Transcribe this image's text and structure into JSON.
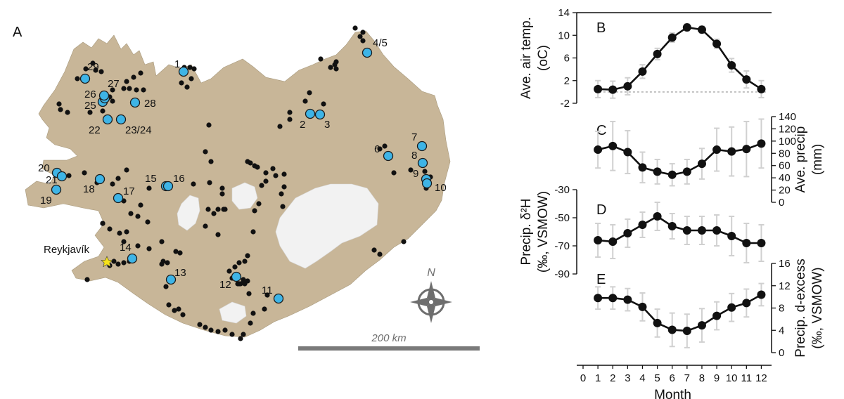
{
  "map": {
    "panel_label": "A",
    "city_label": "Reykjavík",
    "scale_label": "200 km",
    "compass_label": "N",
    "land_color": "#c8b698",
    "glacier_color": "#f2f2f2",
    "site_color": "#3eb4e6",
    "sample_color": "#111111",
    "site_labels": [
      "1",
      "2",
      "3",
      "4/5",
      "6",
      "7",
      "8",
      "9",
      "10",
      "11",
      "12",
      "13",
      "14",
      "15",
      "16",
      "17",
      "18",
      "19",
      "20",
      "21",
      "22",
      "23/24",
      "25",
      "26",
      "27",
      "28",
      "29"
    ]
  },
  "chart_data": [
    {
      "panel": "B",
      "type": "line",
      "ylabel_lines": [
        "Ave. air temp.",
        "(oC)"
      ],
      "yticks": [
        "14",
        "10",
        "6",
        "2",
        "-2"
      ],
      "ylim": [
        -2,
        14
      ],
      "x": [
        1,
        2,
        3,
        4,
        5,
        6,
        7,
        8,
        9,
        10,
        11,
        12
      ],
      "values": [
        0.5,
        0.4,
        1.0,
        3.6,
        6.7,
        9.6,
        11.4,
        11.0,
        8.5,
        4.7,
        2.2,
        0.5
      ],
      "error": [
        1.5,
        1.5,
        1.5,
        1.2,
        1.0,
        0.8,
        0.6,
        0.6,
        0.8,
        1.2,
        1.5,
        1.5
      ],
      "reference_line": 0
    },
    {
      "panel": "C",
      "type": "line",
      "ylabel_lines": [
        "Ave. precip",
        "(mm)"
      ],
      "yticks": [
        "140",
        "120",
        "100",
        "80",
        "60",
        "40",
        "20",
        "0"
      ],
      "ylim": [
        0,
        140
      ],
      "x": [
        1,
        2,
        3,
        4,
        5,
        6,
        7,
        8,
        9,
        10,
        11,
        12
      ],
      "values": [
        86,
        92,
        82,
        57,
        50,
        45,
        50,
        63,
        86,
        83,
        87,
        96
      ],
      "error": [
        30,
        40,
        35,
        25,
        20,
        18,
        20,
        25,
        35,
        40,
        45,
        40
      ]
    },
    {
      "panel": "D",
      "type": "line",
      "ylabel_lines": [
        "Precip. δ²H",
        "(‰, VSMOW)"
      ],
      "yticks": [
        "-30",
        "-50",
        "-70",
        "-90"
      ],
      "ylim": [
        -90,
        -30
      ],
      "x": [
        1,
        2,
        3,
        4,
        5,
        6,
        7,
        8,
        9,
        10,
        11,
        12
      ],
      "values": [
        -66,
        -67,
        -61,
        -55,
        -49,
        -56,
        -59,
        -59,
        -59,
        -63,
        -68,
        -68
      ],
      "error": [
        12,
        12,
        10,
        9,
        10,
        9,
        10,
        10,
        11,
        14,
        14,
        13
      ]
    },
    {
      "panel": "E",
      "type": "line",
      "ylabel_lines": [
        "Precip. d-excess",
        "(‰, VSMOW)"
      ],
      "yticks": [
        "16",
        "12",
        "8",
        "4",
        "0"
      ],
      "ylim": [
        0,
        16
      ],
      "xlabel": "Month",
      "xticks": [
        "0",
        "1",
        "2",
        "3",
        "4",
        "5",
        "6",
        "7",
        "8",
        "9",
        "10",
        "11",
        "12"
      ],
      "x": [
        1,
        2,
        3,
        4,
        5,
        6,
        7,
        8,
        9,
        10,
        11,
        12
      ],
      "values": [
        9.8,
        9.8,
        9.5,
        8.2,
        5.3,
        4.1,
        3.9,
        4.9,
        6.6,
        8.1,
        8.9,
        10.4
      ],
      "error": [
        2,
        2,
        2,
        2.5,
        2.5,
        3,
        3,
        3,
        2.5,
        2.5,
        2.5,
        2
      ]
    }
  ]
}
